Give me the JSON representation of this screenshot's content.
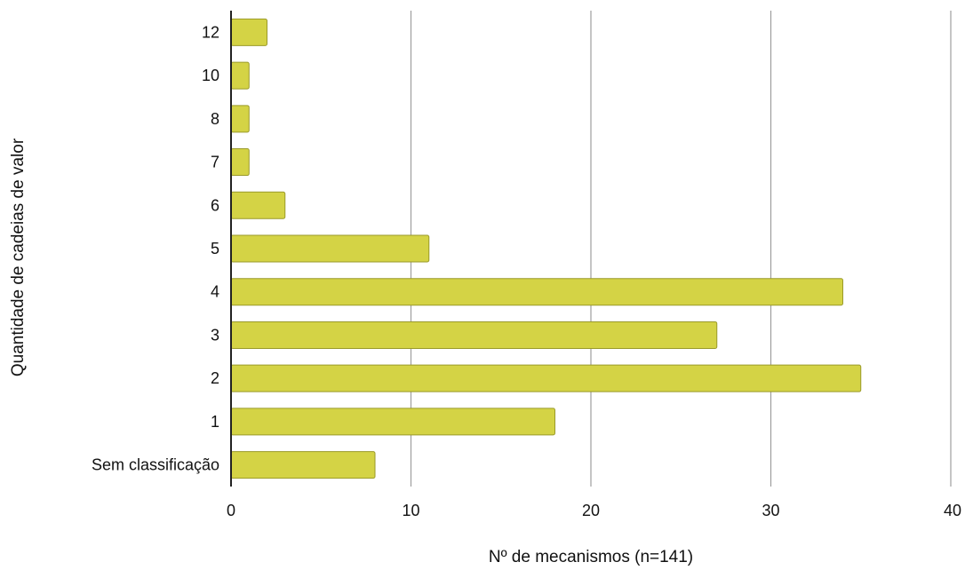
{
  "chart_data": {
    "type": "bar",
    "orientation": "horizontal",
    "title": "",
    "xlabel": "Nº de mecanismos (n=141)",
    "ylabel": "Quantidade de cadeias de valor",
    "categories": [
      "12",
      "10",
      "8",
      "7",
      "6",
      "5",
      "4",
      "3",
      "2",
      "1",
      "Sem classificação"
    ],
    "values": [
      2,
      1,
      1,
      1,
      3,
      11,
      34,
      27,
      35,
      18,
      8
    ],
    "xlim": [
      0,
      40
    ],
    "xticks": [
      0,
      10,
      20,
      30,
      40
    ],
    "grid": true,
    "legend": "none",
    "colors": {
      "bar_fill": "#d4d345",
      "bar_stroke": "#9a9a2a",
      "grid": "#9e9e9e",
      "axis": "#222222"
    }
  }
}
